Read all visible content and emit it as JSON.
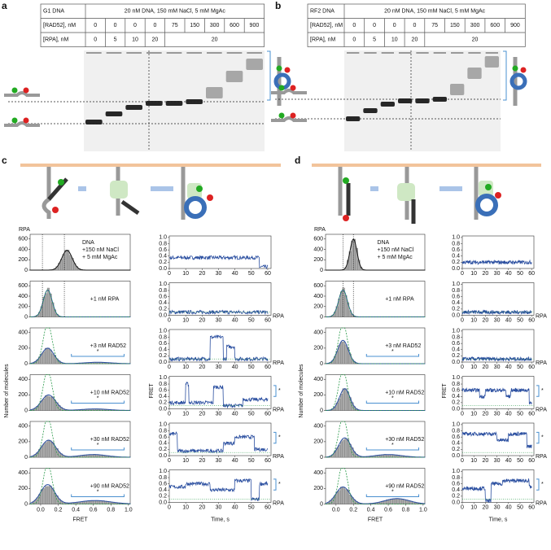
{
  "panel_labels": [
    "a",
    "b",
    "c",
    "d"
  ],
  "gels": [
    {
      "dna": "G1 DNA",
      "conditions": "20 nM DNA, 150 mM NaCl, 5 mM MgAc",
      "rad52_label": "[RAD52], nM",
      "rad52": [
        "0",
        "0",
        "0",
        "0",
        "75",
        "150",
        "300",
        "600",
        "900"
      ],
      "rpa_label": "[RPA], nM",
      "rpa": [
        "0",
        "5",
        "10",
        "20"
      ],
      "rpa_shared": "20"
    },
    {
      "dna": "RF2 DNA",
      "conditions": "20 nM DNA, 150 mM NaCl, 5 mM MgAc",
      "rad52_label": "[RAD52], nM",
      "rad52": [
        "0",
        "0",
        "0",
        "0",
        "75",
        "150",
        "300",
        "600",
        "900"
      ],
      "rpa_label": "[RPA], nM",
      "rpa": [
        "0",
        "5",
        "10",
        "20"
      ],
      "rpa_shared": "20"
    }
  ],
  "smfret": [
    {
      "rpa_marker": "RPA",
      "hist_ylabel": "Number of molecules",
      "hist_xlabel": "FRET",
      "trace_ylabel": "FRET",
      "trace_xlabel": "Time, s",
      "hist_xticks": [
        "0.0",
        "0.2",
        "0.4",
        "0.6",
        "0.8",
        "1.0"
      ],
      "trace_yticks": [
        "0.0",
        "0.2",
        "0.4",
        "0.6",
        "0.8",
        "1.0"
      ],
      "trace_xticks": [
        0,
        10,
        20,
        30,
        40,
        50,
        60
      ],
      "rows": [
        {
          "text": [
            "DNA",
            "+150 nM NaCl",
            "+ 5 mM MgAc"
          ],
          "yticks": [
            0,
            200,
            400,
            600
          ],
          "trace_labels": []
        },
        {
          "text": [
            "+1 nM  RPA"
          ],
          "yticks": [
            0,
            200,
            400,
            600
          ],
          "trace_labels": [
            "RPA"
          ]
        },
        {
          "text": [
            "+3 nM  RAD52"
          ],
          "yticks": [
            0,
            200,
            400
          ],
          "asterisk": "*",
          "trace_labels": [
            "RPA"
          ]
        },
        {
          "text": [
            "+10 nM  RAD52"
          ],
          "yticks": [
            0,
            200,
            400
          ],
          "asterisk": "*",
          "trace_labels": [
            "*",
            "RPA"
          ]
        },
        {
          "text": [
            "+30 nM  RAD52"
          ],
          "yticks": [
            0,
            200,
            400
          ],
          "asterisk": "*",
          "trace_labels": [
            "*",
            "RPA"
          ]
        },
        {
          "text": [
            "+90 nM  RAD52"
          ],
          "yticks": [
            0,
            200,
            400
          ],
          "asterisk": "*",
          "trace_labels": [
            "*",
            "RPA"
          ]
        }
      ]
    },
    {
      "rpa_marker": "RPA",
      "hist_ylabel": "Number of molecules",
      "hist_xlabel": "FRET",
      "trace_ylabel": "FRET",
      "trace_xlabel": "Time, s",
      "hist_xticks": [
        "0.0",
        "0.2",
        "0.4",
        "0.6",
        "0.8",
        "1.0"
      ],
      "trace_yticks": [
        "0.0",
        "0.2",
        "0.4",
        "0.6",
        "0.8",
        "1.0"
      ],
      "trace_xticks": [
        0,
        10,
        20,
        30,
        40,
        50,
        60
      ],
      "rows": [
        {
          "text": [
            "DNA",
            "+150 nM NaCl",
            "+ 5 mM MgAc"
          ],
          "yticks": [
            0,
            200,
            400,
            600
          ],
          "trace_labels": []
        },
        {
          "text": [
            "+1 nM  RPA"
          ],
          "yticks": [
            0,
            200,
            400,
            600
          ],
          "trace_labels": [
            "RPA"
          ]
        },
        {
          "text": [
            "+3 nM  RAD52"
          ],
          "yticks": [
            0,
            200,
            400
          ],
          "asterisk": "*",
          "trace_labels": [
            "RPA"
          ]
        },
        {
          "text": [
            "+10 nM  RAD52"
          ],
          "yticks": [
            0,
            200,
            400
          ],
          "asterisk": "*",
          "trace_labels": [
            "*",
            "RPA"
          ]
        },
        {
          "text": [
            "+30 nM  RAD52"
          ],
          "yticks": [
            0,
            200,
            400
          ],
          "asterisk": "*",
          "trace_labels": [
            "*",
            "RPA"
          ]
        },
        {
          "text": [
            "+90 nM  RAD52"
          ],
          "yticks": [
            0,
            200,
            400
          ],
          "asterisk": "*",
          "trace_labels": [
            "*",
            "RPA"
          ]
        }
      ]
    }
  ]
}
